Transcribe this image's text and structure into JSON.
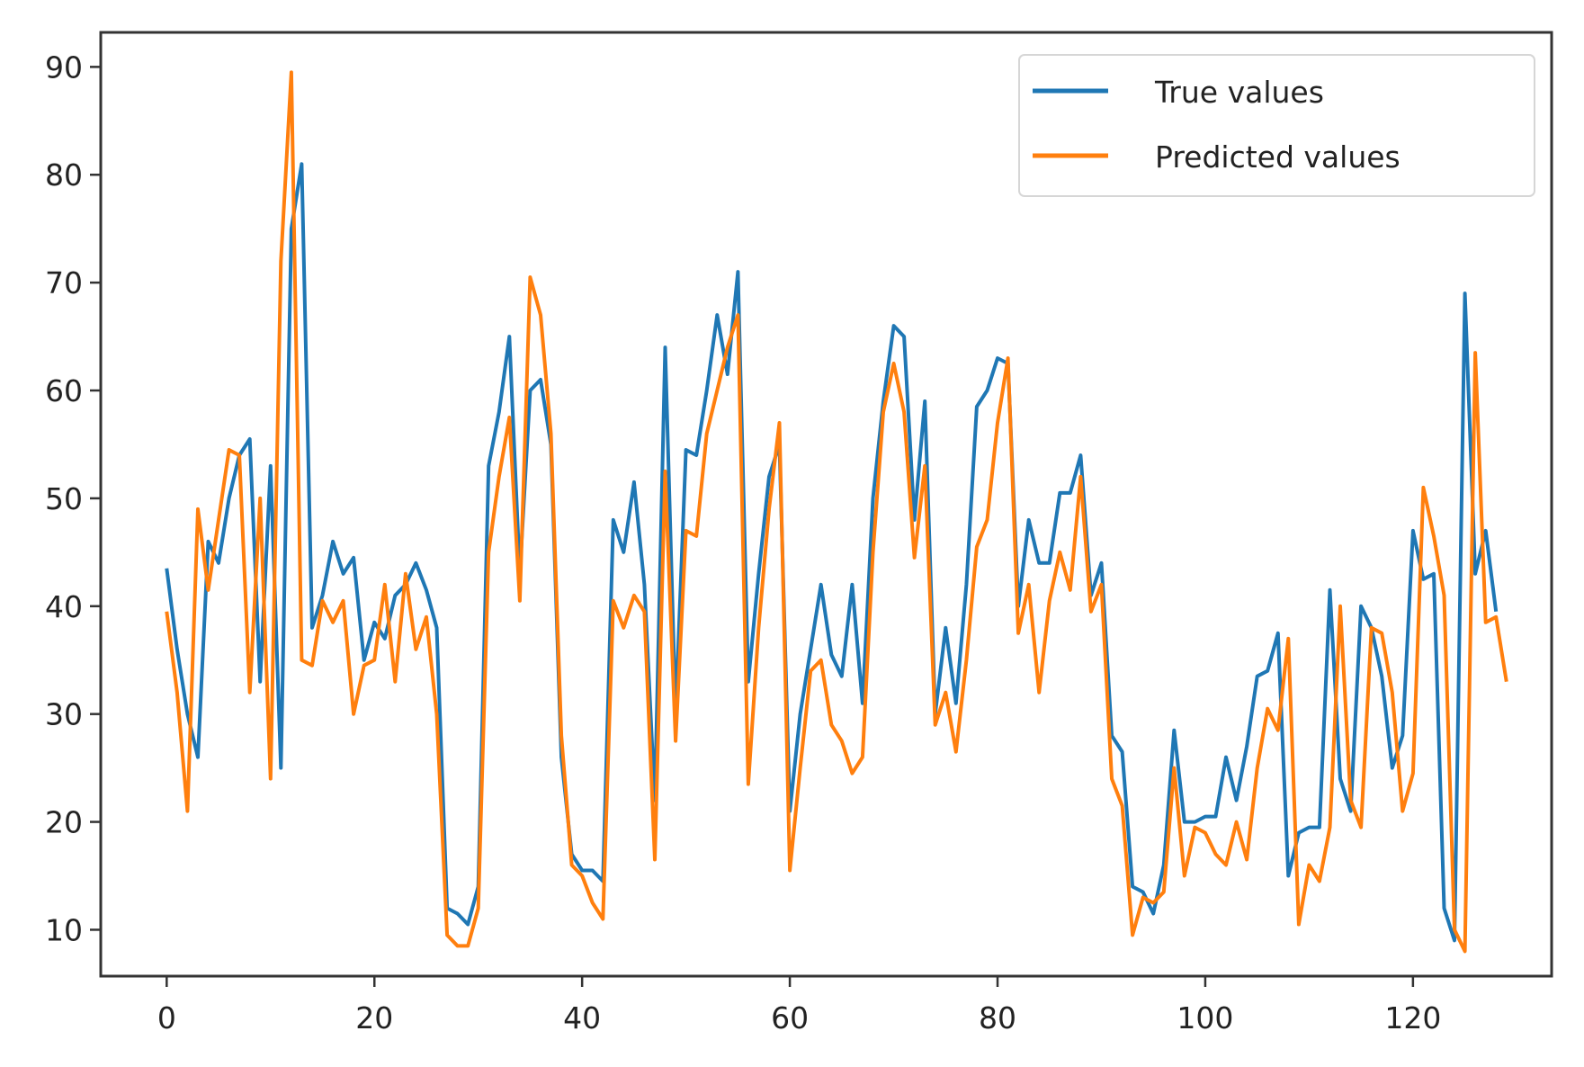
{
  "chart_data": {
    "type": "line",
    "title": "",
    "xlabel": "",
    "ylabel": "",
    "xlim": [
      -6.35,
      133.35
    ],
    "ylim": [
      5.7,
      93.2
    ],
    "xticks": [
      0,
      20,
      40,
      60,
      80,
      100,
      120
    ],
    "yticks": [
      10,
      20,
      30,
      40,
      50,
      60,
      70,
      80,
      90
    ],
    "grid": false,
    "legend_position": "upper right",
    "series": [
      {
        "name": "True values",
        "color": "#1f77b4",
        "values": [
          43.5,
          36,
          30,
          26,
          46,
          44,
          50,
          54,
          55.5,
          33,
          53,
          25,
          75,
          81,
          38,
          41,
          46,
          43,
          44.5,
          35,
          38.5,
          37,
          41,
          42,
          44,
          41.5,
          38,
          12,
          11.5,
          10.5,
          14,
          53,
          58,
          65,
          43,
          60,
          61,
          55,
          26,
          17,
          15.5,
          15.5,
          14.5,
          48,
          45,
          51.5,
          42,
          22,
          64,
          30,
          54.5,
          54,
          60,
          67,
          61.5,
          71,
          33,
          43,
          52,
          55,
          21,
          30,
          36,
          42,
          35.5,
          33.5,
          42,
          31,
          50,
          59,
          66,
          65,
          48,
          59,
          30,
          38,
          31,
          42,
          58.5,
          60,
          63,
          62.5,
          40,
          48,
          44,
          44,
          50.5,
          50.5,
          54,
          41,
          44,
          28,
          26.5,
          14,
          13.5,
          11.5,
          16,
          28.5,
          20,
          20,
          20.5,
          20.5,
          26,
          22,
          27,
          33.5,
          34,
          37.5,
          15,
          19,
          19.5,
          19.5,
          41.5,
          24,
          21,
          40,
          38,
          33.5,
          25,
          28,
          47,
          42.5,
          43,
          12,
          9,
          69,
          43,
          47,
          39.5
        ]
      },
      {
        "name": "Predicted values",
        "color": "#ff7f0e",
        "values": [
          39.5,
          32,
          21,
          49,
          41.5,
          48,
          54.5,
          54,
          32,
          50,
          24,
          72,
          89.5,
          35,
          34.5,
          40.5,
          38.5,
          40.5,
          30,
          34.5,
          35,
          42,
          33,
          43,
          36,
          39,
          30,
          9.5,
          8.5,
          8.5,
          12,
          45,
          52,
          57.5,
          40.5,
          70.5,
          67,
          56,
          28,
          16,
          15,
          12.5,
          11,
          40.5,
          38,
          41,
          39.5,
          16.5,
          52.5,
          27.5,
          47,
          46.5,
          56,
          60,
          64,
          67,
          23.5,
          38,
          49,
          57,
          15.5,
          25,
          34,
          35,
          29,
          27.5,
          24.5,
          26,
          45,
          58,
          62.5,
          58,
          44.5,
          53,
          29,
          32,
          26.5,
          35,
          45.5,
          48,
          57,
          63,
          37.5,
          42,
          32,
          40.5,
          45,
          41.5,
          52,
          39.5,
          42,
          24,
          21.5,
          9.5,
          13,
          12.5,
          13.5,
          25,
          15,
          19.5,
          19,
          17,
          16,
          20,
          16.5,
          25,
          30.5,
          28.5,
          37,
          10.5,
          16,
          14.5,
          19.5,
          40,
          22,
          19.5,
          38,
          37.5,
          32,
          21,
          24.5,
          51,
          46.5,
          41,
          10,
          8,
          63.5,
          38.5,
          39,
          33
        ]
      }
    ]
  },
  "legend": {
    "items": [
      {
        "label": "True values",
        "color": "#1f77b4"
      },
      {
        "label": "Predicted values",
        "color": "#ff7f0e"
      }
    ]
  },
  "axes": {
    "x_tick_labels": [
      "0",
      "20",
      "40",
      "60",
      "80",
      "100",
      "120"
    ],
    "y_tick_labels": [
      "10",
      "20",
      "30",
      "40",
      "50",
      "60",
      "70",
      "80",
      "90"
    ]
  }
}
